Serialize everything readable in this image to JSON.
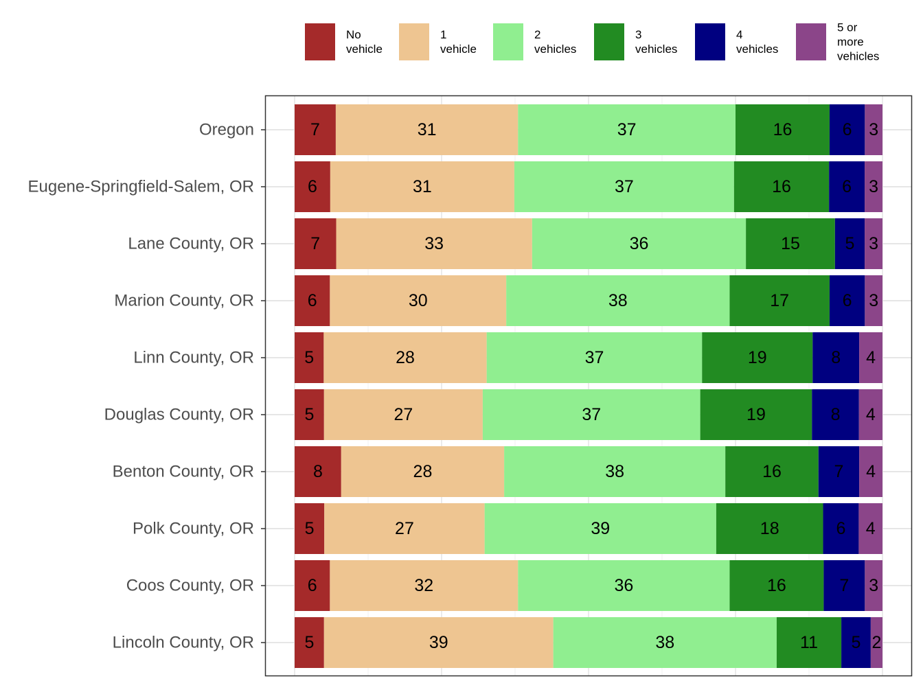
{
  "chart_data": {
    "type": "bar",
    "orientation": "horizontal",
    "stacked": true,
    "normalized_percent": true,
    "title": "",
    "xlabel": "",
    "ylabel": "",
    "xlim": [
      0,
      100
    ],
    "grid": true,
    "legend_position": "top-right",
    "categories": [
      "Oregon",
      "Eugene-Springfield-Salem, OR",
      "Lane County, OR",
      "Marion County, OR",
      "Linn County, OR",
      "Douglas County, OR",
      "Benton County, OR",
      "Polk County, OR",
      "Coos County, OR",
      "Lincoln County, OR"
    ],
    "series": [
      {
        "name": "No vehicle",
        "legend_lines": [
          "No",
          "vehicle"
        ],
        "color": "#a52a2a",
        "values": [
          7,
          6,
          7,
          6,
          5,
          5,
          8,
          5,
          6,
          5
        ]
      },
      {
        "name": "1 vehicle",
        "legend_lines": [
          "1",
          "vehicle"
        ],
        "color": "#eec591",
        "values": [
          31,
          31,
          33,
          30,
          28,
          27,
          28,
          27,
          32,
          39
        ]
      },
      {
        "name": "2 vehicles",
        "legend_lines": [
          "2",
          "vehicles"
        ],
        "color": "#90ee90",
        "values": [
          37,
          37,
          36,
          38,
          37,
          37,
          38,
          39,
          36,
          38
        ]
      },
      {
        "name": "3 vehicles",
        "legend_lines": [
          "3",
          "vehicles"
        ],
        "color": "#228b22",
        "values": [
          16,
          16,
          15,
          17,
          19,
          19,
          16,
          18,
          16,
          11
        ]
      },
      {
        "name": "4 vehicles",
        "legend_lines": [
          "4",
          "vehicles"
        ],
        "color": "#000080",
        "values": [
          6,
          6,
          5,
          6,
          8,
          8,
          7,
          6,
          7,
          5
        ]
      },
      {
        "name": "5 or more vehicles",
        "legend_lines": [
          "5 or",
          "more",
          "vehicles"
        ],
        "color": "#8b4589",
        "values": [
          3,
          3,
          3,
          3,
          4,
          4,
          4,
          4,
          3,
          2
        ]
      }
    ]
  }
}
